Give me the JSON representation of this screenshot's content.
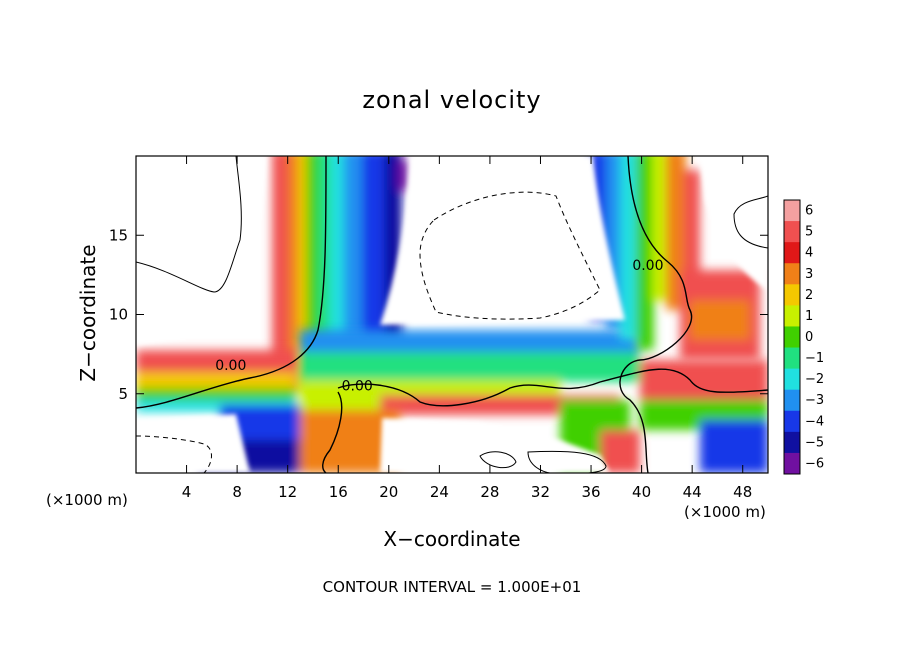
{
  "chart_data": {
    "type": "heatmap",
    "title": "zonal velocity",
    "xlabel": "X−coordinate",
    "ylabel": "Z−coordinate",
    "x_unit": "(×1000 m)",
    "z_unit": "(×1000 m)",
    "xlim": [
      0,
      50
    ],
    "ylim": [
      0,
      20
    ],
    "x_ticks": [
      4,
      8,
      12,
      16,
      20,
      24,
      28,
      32,
      36,
      40,
      44,
      48
    ],
    "y_ticks": [
      5,
      10,
      15
    ],
    "colorbar": {
      "levels": [
        6,
        5,
        4,
        3,
        2,
        1,
        0,
        -1,
        -2,
        -3,
        -4,
        -5,
        -6
      ],
      "labels": [
        "6",
        "5",
        "4",
        "3",
        "2",
        "1",
        "0",
        "−1",
        "−2",
        "−3",
        "−4",
        "−5",
        "−6"
      ],
      "colors": [
        "#f4a0a0",
        "#f05050",
        "#e01818",
        "#f08018",
        "#f4c800",
        "#c8f000",
        "#40d000",
        "#20e080",
        "#20e0e0",
        "#2090f0",
        "#1838e8",
        "#1010a0",
        "#7010a0"
      ]
    },
    "contour_labels": [
      {
        "text": "0.00",
        "x": 7.5,
        "z": 6.5
      },
      {
        "text": "0.00",
        "x": 17.5,
        "z": 5.2
      },
      {
        "text": "0.00",
        "x": 40.5,
        "z": 12.8
      }
    ],
    "contour_interval_text": "CONTOUR INTERVAL = 1.000E+01",
    "grid": false
  }
}
